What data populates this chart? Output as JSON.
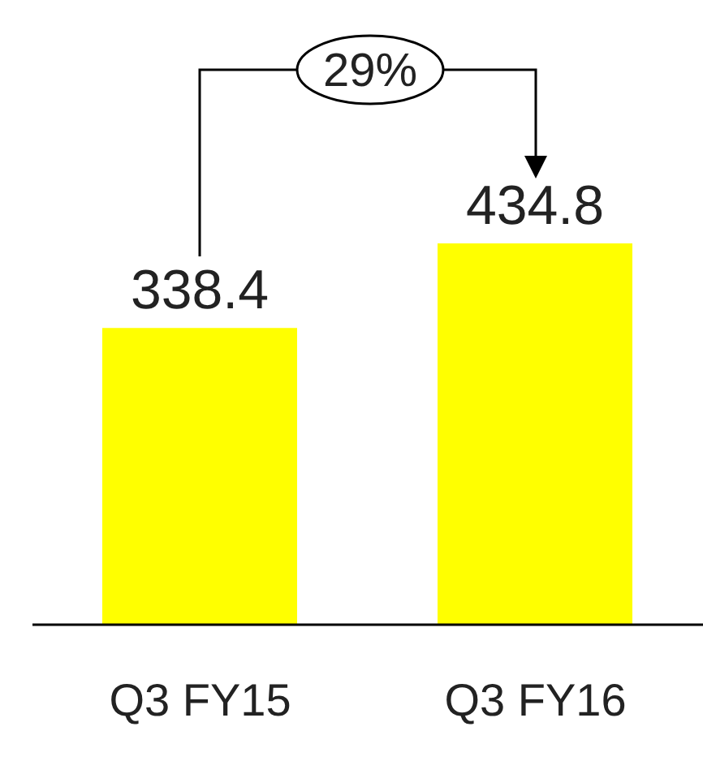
{
  "chart_data": {
    "type": "bar",
    "categories": [
      "Q3 FY15",
      "Q3 FY16"
    ],
    "values": [
      338.4,
      434.8
    ],
    "color": "#ffff00",
    "data_labels": true,
    "annotations": [
      "29%"
    ]
  }
}
